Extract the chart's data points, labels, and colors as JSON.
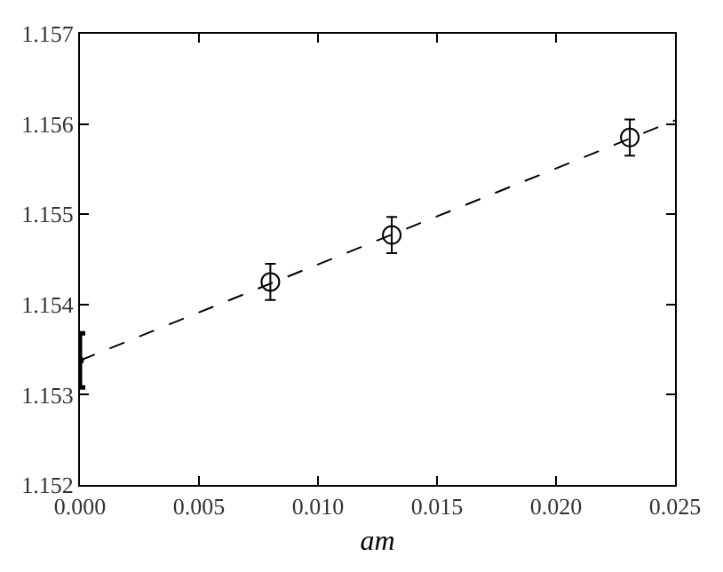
{
  "chart_data": {
    "type": "scatter",
    "xlabel": "am",
    "xlim": [
      0,
      0.025
    ],
    "xticks": [
      {
        "value": 0,
        "label": "0.000"
      },
      {
        "value": 0.005,
        "label": "0.005"
      },
      {
        "value": 0.01,
        "label": "0.010"
      },
      {
        "value": 0.015,
        "label": "0.015"
      },
      {
        "value": 0.02,
        "label": "0.020"
      },
      {
        "value": 0.025,
        "label": "0.025"
      }
    ],
    "ylim": [
      1.152,
      1.157
    ],
    "yticks": [
      1.152,
      1.153,
      1.154,
      1.155,
      1.156,
      1.157
    ],
    "series": [
      {
        "color": "#000000",
        "marker": "circle",
        "x": [
          0.008,
          0.0131,
          0.0231
        ],
        "values": [
          1.15425,
          1.15477,
          1.15585
        ],
        "errors": [
          0.0002,
          0.0002,
          0.0002
        ]
      },
      {
        "color": "#000000",
        "marker": "none",
        "x": [
          0
        ],
        "values": [
          1.15338
        ],
        "errors": [
          0.0003
        ]
      },
      {
        "type": "line",
        "color": "#000000",
        "line_style": "dashed",
        "x": [
          0,
          0.025
        ],
        "values": [
          1.15338,
          1.15604
        ]
      }
    ]
  }
}
